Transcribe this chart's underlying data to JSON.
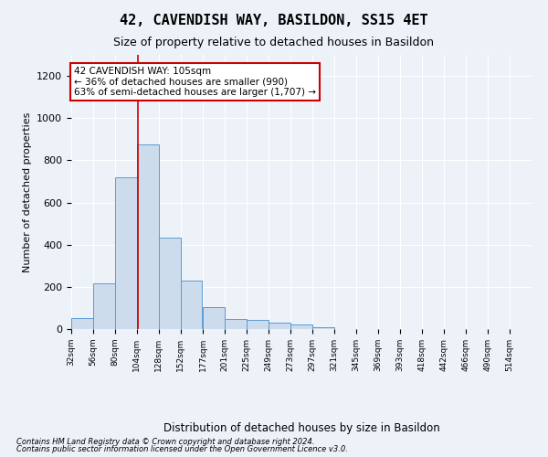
{
  "title": "42, CAVENDISH WAY, BASILDON, SS15 4ET",
  "subtitle": "Size of property relative to detached houses in Basildon",
  "xlabel": "Distribution of detached houses by size in Basildon",
  "ylabel": "Number of detached properties",
  "annotation_text": "42 CAVENDISH WAY: 105sqm\n← 36% of detached houses are smaller (990)\n63% of semi-detached houses are larger (1,707) →",
  "footnote1": "Contains HM Land Registry data © Crown copyright and database right 2024.",
  "footnote2": "Contains public sector information licensed under the Open Government Licence v3.0.",
  "bin_edges": [
    32,
    56,
    80,
    104,
    128,
    152,
    177,
    201,
    225,
    249,
    273,
    297,
    321,
    345,
    369,
    393,
    418,
    442,
    466,
    490,
    514
  ],
  "bin_values": [
    50,
    215,
    720,
    875,
    435,
    230,
    105,
    47,
    45,
    32,
    20,
    10,
    0,
    0,
    0,
    0,
    0,
    0,
    0,
    0
  ],
  "bar_color": "#ccdcec",
  "bar_edge_color": "#5b9bd5",
  "redline_x": 105,
  "ylim": [
    0,
    1300
  ],
  "yticks": [
    0,
    200,
    400,
    600,
    800,
    1000,
    1200
  ],
  "bg_color": "#edf2f9",
  "annotation_box_color": "#cc0000",
  "grid_color": "#ffffff",
  "title_fontsize": 11,
  "subtitle_fontsize": 9
}
